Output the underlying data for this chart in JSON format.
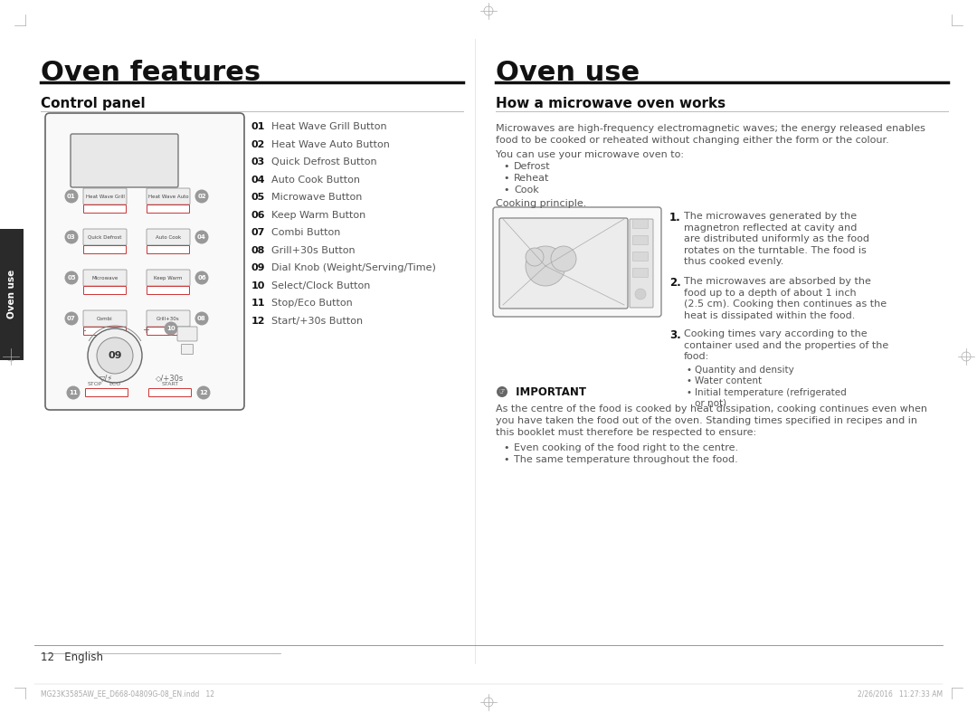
{
  "bg_color": "#ffffff",
  "left_title": "Oven features",
  "right_title": "Oven use",
  "left_section": "Control panel",
  "right_section": "How a microwave oven works",
  "control_items": [
    [
      "01",
      "Heat Wave Grill Button"
    ],
    [
      "02",
      "Heat Wave Auto Button"
    ],
    [
      "03",
      "Quick Defrost Button"
    ],
    [
      "04",
      "Auto Cook Button"
    ],
    [
      "05",
      "Microwave Button"
    ],
    [
      "06",
      "Keep Warm Button"
    ],
    [
      "07",
      "Combi Button"
    ],
    [
      "08",
      "Grill+30s Button"
    ],
    [
      "09",
      "Dial Knob (Weight/Serving/Time)"
    ],
    [
      "10",
      "Select/Clock Button"
    ],
    [
      "11",
      "Stop/Eco Button"
    ],
    [
      "12",
      "Start/+30s Button"
    ]
  ],
  "microwave_intro_1": "Microwaves are high-frequency electromagnetic waves; the energy released enables",
  "microwave_intro_2": "food to be cooked or reheated without changing either the form or the colour.",
  "you_can_text": "You can use your microwave oven to:",
  "bullet_items": [
    "Defrost",
    "Reheat",
    "Cook"
  ],
  "cooking_principle": "Cooking principle.",
  "numbered_items": [
    [
      "The microwaves generated by the",
      "magnetron reflected at cavity and",
      "are distributed uniformly as the food",
      "rotates on the turntable. The food is",
      "thus cooked evenly."
    ],
    [
      "The microwaves are absorbed by the",
      "food up to a depth of about 1 inch",
      "(2.5 cm). Cooking then continues as the",
      "heat is dissipated within the food."
    ],
    [
      "Cooking times vary according to the",
      "container used and the properties of the",
      "food:"
    ]
  ],
  "sub_bullets": [
    "Quantity and density",
    "Water content",
    "Initial temperature (refrigerated",
    "or not)"
  ],
  "important_title": "IMPORTANT",
  "important_text": [
    "As the centre of the food is cooked by heat dissipation, cooking continues even when",
    "you have taken the food out of the oven. Standing times specified in recipes and in",
    "this booklet must therefore be respected to ensure:"
  ],
  "important_bullets": [
    "Even cooking of the food right to the centre.",
    "The same temperature throughout the food."
  ],
  "footer_page": "12   English",
  "footer_small": "MG23K3585AW_EE_D668-04809G-08_EN.indd   12",
  "footer_right": "2/26/2016   11:27:33 AM",
  "tab_text": "Oven use",
  "tab_bg": "#2a2a2a"
}
